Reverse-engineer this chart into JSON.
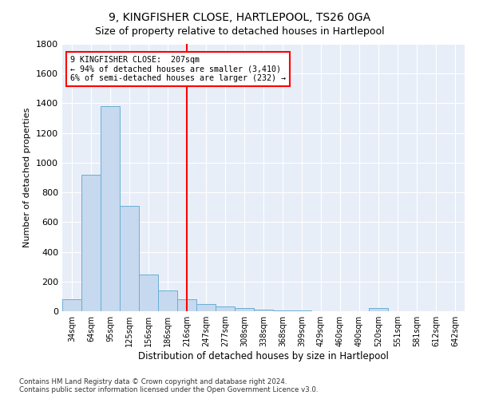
{
  "title": "9, KINGFISHER CLOSE, HARTLEPOOL, TS26 0GA",
  "subtitle": "Size of property relative to detached houses in Hartlepool",
  "xlabel": "Distribution of detached houses by size in Hartlepool",
  "ylabel": "Number of detached properties",
  "categories": [
    "34sqm",
    "64sqm",
    "95sqm",
    "125sqm",
    "156sqm",
    "186sqm",
    "216sqm",
    "247sqm",
    "277sqm",
    "308sqm",
    "338sqm",
    "368sqm",
    "399sqm",
    "429sqm",
    "460sqm",
    "490sqm",
    "520sqm",
    "551sqm",
    "581sqm",
    "612sqm",
    "642sqm"
  ],
  "values": [
    80,
    920,
    1380,
    710,
    245,
    140,
    80,
    47,
    30,
    20,
    10,
    5,
    3,
    0,
    0,
    0,
    20,
    0,
    0,
    0,
    0
  ],
  "bar_color": "#c6d9ee",
  "bar_edge_color": "#6aaed6",
  "vline_position": 6,
  "vline_color": "red",
  "annotation_text": "9 KINGFISHER CLOSE:  207sqm\n← 94% of detached houses are smaller (3,410)\n6% of semi-detached houses are larger (232) →",
  "annotation_box_color": "white",
  "annotation_box_edge": "red",
  "ylim": [
    0,
    1800
  ],
  "yticks": [
    0,
    200,
    400,
    600,
    800,
    1000,
    1200,
    1400,
    1600,
    1800
  ],
  "footnote1": "Contains HM Land Registry data © Crown copyright and database right 2024.",
  "footnote2": "Contains public sector information licensed under the Open Government Licence v3.0.",
  "bg_color": "#ffffff",
  "plot_bg_color": "#e8eef8"
}
